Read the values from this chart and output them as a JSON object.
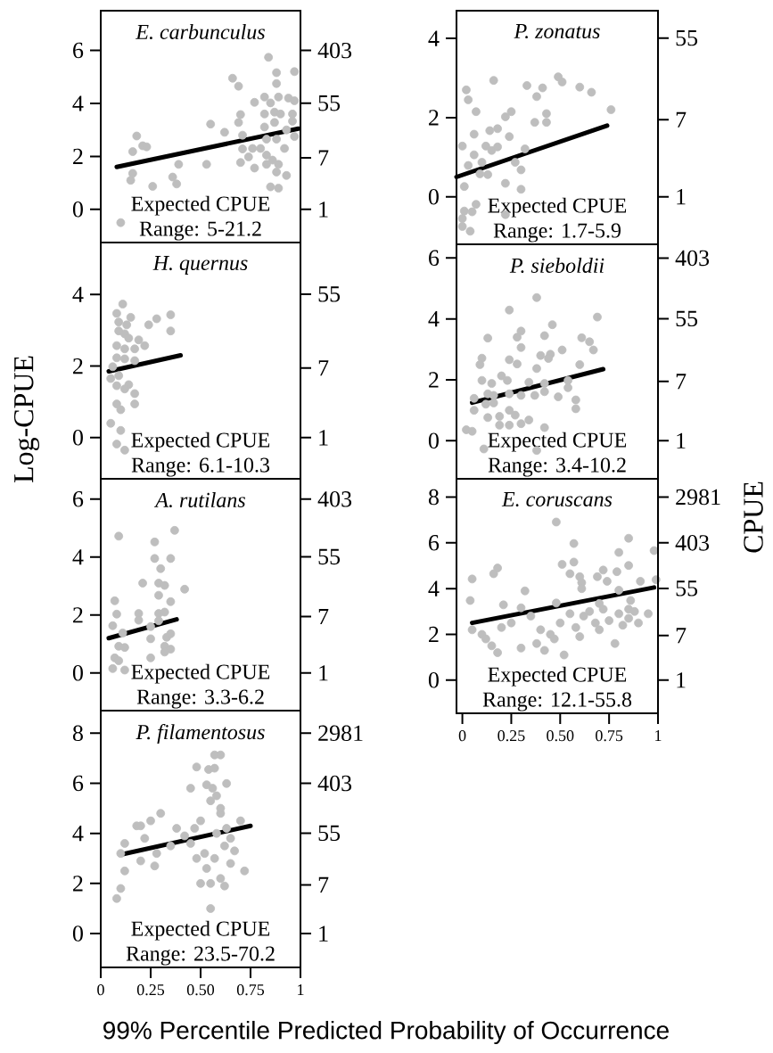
{
  "chart_data": [
    {
      "type": "scatter",
      "title": "E. carbunculus",
      "annotations": [
        "Expected CPUE",
        "Range: 5-21.2"
      ],
      "xlim": [
        0,
        1
      ],
      "ylim": [
        -1.25,
        7.5
      ],
      "yticks": [
        0,
        2,
        4,
        6
      ],
      "log": "y2",
      "y2lim": [
        0.2865,
        1808
      ],
      "y2ticks": [
        1,
        7,
        55,
        403
      ],
      "tick_labels": "y",
      "marker": "circle",
      "series": [
        {
          "color": "#bebebe",
          "x": [
            0.84,
            0.88,
            0.97,
            0.66,
            0.69,
            0.88,
            0.82,
            0.89,
            0.94,
            0.97,
            0.77,
            0.85,
            0.87,
            0.82,
            0.9,
            0.96,
            0.7,
            0.69,
            0.55,
            0.62,
            0.82,
            0.87,
            0.96,
            0.93,
            0.97,
            0.71,
            0.18,
            0.21,
            0.23,
            0.16,
            0.71,
            0.76,
            0.8,
            0.83,
            0.88,
            0.92,
            0.74,
            0.83,
            0.86,
            0.7,
            0.77,
            0.83,
            0.89,
            0.88,
            0.93,
            0.39,
            0.53,
            0.36,
            0.38,
            0.16,
            0.15,
            0.26,
            0.85,
            0.89,
            0.1
          ],
          "values": [
            5.74,
            5.16,
            5.2,
            4.95,
            4.65,
            4.75,
            4.24,
            4.24,
            4.2,
            4.1,
            4.04,
            4.02,
            3.67,
            3.6,
            3.6,
            3.6,
            3.58,
            3.28,
            3.22,
            2.91,
            3.11,
            3.28,
            3.33,
            3.0,
            2.75,
            2.8,
            2.77,
            2.4,
            2.36,
            2.18,
            2.28,
            2.3,
            2.3,
            2.65,
            2.65,
            2.3,
            1.98,
            2.05,
            1.86,
            1.77,
            1.56,
            1.7,
            1.7,
            1.41,
            1.28,
            1.7,
            1.7,
            1.22,
            0.96,
            1.36,
            1.1,
            0.87,
            0.85,
            0.8,
            -0.5
          ]
        },
        {
          "type": "line",
          "marker": "none",
          "color": "#000000",
          "x": [
            0.08,
            0.99
          ],
          "values": [
            1.6,
            3.05
          ]
        }
      ]
    },
    {
      "type": "scatter",
      "title": "H. quernus",
      "ylabel": "Log-CPUE",
      "annotations": [
        "Expected CPUE",
        "Range: 6.1-10.3"
      ],
      "xlim": [
        0,
        1
      ],
      "ylim": [
        -1.15,
        5.45
      ],
      "yticks": [
        0,
        2,
        4
      ],
      "log": "y2",
      "y2lim": [
        0.3166,
        232.8
      ],
      "y2ticks": [
        1,
        7,
        55
      ],
      "tick_labels": "y",
      "marker": "circle",
      "series": [
        {
          "color": "#bebebe",
          "x": [
            0.11,
            0.08,
            0.15,
            0.35,
            0.28,
            0.24,
            0.35,
            0.09,
            0.13,
            0.09,
            0.12,
            0.14,
            0.19,
            0.22,
            0.08,
            0.17,
            0.12,
            0.08,
            0.12,
            0.17,
            0.06,
            0.09,
            0.05,
            0.14,
            0.08,
            0.12,
            0.17,
            0.08,
            0.17,
            0.1,
            0.05,
            0.1,
            0.08,
            0.12
          ],
          "values": [
            3.73,
            3.47,
            3.36,
            3.43,
            3.32,
            3.15,
            2.98,
            3.23,
            3.15,
            2.98,
            2.9,
            2.78,
            2.73,
            2.57,
            2.57,
            2.48,
            2.48,
            2.23,
            2.2,
            2.15,
            1.98,
            1.73,
            1.65,
            1.48,
            1.45,
            1.36,
            1.23,
            0.94,
            0.94,
            0.78,
            0.4,
            0.2,
            -0.18,
            -0.35
          ]
        },
        {
          "type": "line",
          "marker": "none",
          "color": "#000000",
          "x": [
            0.04,
            0.4
          ],
          "values": [
            1.85,
            2.3
          ]
        }
      ]
    },
    {
      "type": "scatter",
      "title": "A. rutilans",
      "annotations": [
        "Expected CPUE",
        "Range: 3.3-6.2"
      ],
      "xlim": [
        0,
        1
      ],
      "ylim": [
        -1.3,
        6.7
      ],
      "yticks": [
        0,
        2,
        4,
        6
      ],
      "log": "y2",
      "y2lim": [
        0.2725,
        812.4
      ],
      "y2ticks": [
        1,
        7,
        55,
        403
      ],
      "tick_labels": "y",
      "marker": "circle",
      "series": [
        {
          "color": "#bebebe",
          "x": [
            0.09,
            0.37,
            0.27,
            0.27,
            0.35,
            0.3,
            0.21,
            0.29,
            0.32,
            0.42,
            0.07,
            0.29,
            0.35,
            0.08,
            0.19,
            0.29,
            0.32,
            0.19,
            0.06,
            0.25,
            0.29,
            0.11,
            0.25,
            0.33,
            0.35,
            0.09,
            0.12,
            0.32,
            0.35,
            0.32,
            0.07,
            0.09,
            0.25,
            0.06,
            0.12
          ],
          "values": [
            4.72,
            4.92,
            4.52,
            3.95,
            3.95,
            3.6,
            3.1,
            3.1,
            3.02,
            2.89,
            2.49,
            2.68,
            2.46,
            2.03,
            2.05,
            2.05,
            2.1,
            1.82,
            1.63,
            1.6,
            1.8,
            1.38,
            1.18,
            1.23,
            1.35,
            0.92,
            0.88,
            0.92,
            0.82,
            0.72,
            0.52,
            0.42,
            0.52,
            0.15,
            0.1
          ]
        },
        {
          "type": "line",
          "marker": "none",
          "color": "#000000",
          "x": [
            0.04,
            0.38
          ],
          "values": [
            1.2,
            1.85
          ]
        }
      ]
    },
    {
      "type": "scatter",
      "title": "P. filamentosus",
      "xlabel": "99% Percentile Predicted Probability of Occurrence",
      "annotations": [
        "Expected CPUE",
        "Range: 23.5-70.2"
      ],
      "xlim": [
        0,
        1
      ],
      "xticks": [
        0,
        0.25,
        {
          "value": 0.5,
          "label": "0.50"
        },
        0.75,
        1
      ],
      "ylim": [
        -1.35,
        8.9
      ],
      "yticks": [
        0,
        2,
        4,
        6,
        8
      ],
      "log": "y2",
      "y2lim": [
        0.2592,
        7332
      ],
      "y2ticks": [
        1,
        7,
        55,
        403,
        2981
      ],
      "marker": "circle",
      "series": [
        {
          "color": "#bebebe",
          "x": [
            0.57,
            0.6,
            0.48,
            0.54,
            0.57,
            0.53,
            0.56,
            0.63,
            0.3,
            0.25,
            0.2,
            0.18,
            0.12,
            0.1,
            0.12,
            0.1,
            0.08,
            0.22,
            0.28,
            0.27,
            0.2,
            0.38,
            0.42,
            0.45,
            0.47,
            0.5,
            0.52,
            0.5,
            0.53,
            0.55,
            0.55,
            0.57,
            0.58,
            0.6,
            0.6,
            0.62,
            0.63,
            0.65,
            0.67,
            0.7,
            0.72,
            0.58,
            0.55,
            0.45,
            0.65,
            0.48,
            0.35,
            0.6,
            0.62
          ],
          "values": [
            7.13,
            7.13,
            6.65,
            6.55,
            6.6,
            5.94,
            5.8,
            5.99,
            4.8,
            4.5,
            4.3,
            4.3,
            3.6,
            3.2,
            2.5,
            1.8,
            1.4,
            3.8,
            3.2,
            2.7,
            2.9,
            4.2,
            3.9,
            3.6,
            4.2,
            4.5,
            3.2,
            2.0,
            2.6,
            1.0,
            2.0,
            3.0,
            4.0,
            4.8,
            5.0,
            3.5,
            4.2,
            3.8,
            3.3,
            4.5,
            2.5,
            5.5,
            5.3,
            5.8,
            2.8,
            3.0,
            3.5,
            2.2,
            1.9
          ]
        },
        {
          "type": "line",
          "marker": "none",
          "color": "#000000",
          "x": [
            0.1,
            0.75
          ],
          "values": [
            3.15,
            4.3
          ]
        }
      ]
    },
    {
      "type": "scatter",
      "title": "P. zonatus",
      "annotations": [
        "Expected CPUE",
        "Range: 1.7-5.9"
      ],
      "xlim": [
        -0.03,
        1
      ],
      "ylim": [
        -1.2,
        4.7
      ],
      "yticks": [
        0,
        2,
        4
      ],
      "log": "y2",
      "y2lim": [
        0.3012,
        109.9
      ],
      "y2ticks": [
        1,
        7,
        55
      ],
      "tick_labels": "y",
      "marker": "circle",
      "series": [
        {
          "color": "#bebebe",
          "x": [
            0.16,
            0.49,
            0.51,
            0.33,
            0.41,
            0.6,
            0.66,
            0.02,
            0.03,
            0.38,
            0.07,
            0.25,
            0.22,
            0.43,
            0.43,
            0.37,
            0.76,
            0.14,
            0.18,
            0.06,
            0.24,
            0,
            0.12,
            0.15,
            0.18,
            0.32,
            0.06,
            0.1,
            0.03,
            0.27,
            0.3,
            0.13,
            0.09,
            0.01,
            0.22,
            0.3,
            0.07,
            0.05,
            0.01,
            0,
            0.04,
            0.22,
            0
          ],
          "values": [
            2.94,
            3.03,
            2.9,
            2.81,
            2.75,
            2.77,
            2.64,
            2.7,
            2.45,
            2.53,
            2.15,
            2.15,
            2.02,
            2.1,
            1.88,
            1.88,
            2.2,
            1.67,
            1.72,
            1.58,
            1.52,
            1.28,
            1.28,
            1.17,
            1.26,
            1.21,
            1.06,
            0.87,
            0.79,
            0.87,
            0.68,
            0.56,
            0.58,
            0.26,
            0.34,
            0.19,
            -0.19,
            -0.38,
            -0.36,
            -0.75,
            -0.87,
            -0.45,
            -0.55
          ]
        },
        {
          "type": "line",
          "marker": "none",
          "color": "#000000",
          "x": [
            -0.03,
            0.74
          ],
          "values": [
            0.5,
            1.8
          ]
        }
      ]
    },
    {
      "type": "scatter",
      "title": "P. sieboldii",
      "annotations": [
        "Expected CPUE",
        "Range: 3.4-10.2"
      ],
      "xlim": [
        -0.03,
        1
      ],
      "ylim": [
        -1.25,
        6.45
      ],
      "yticks": [
        0,
        2,
        4,
        6
      ],
      "log": "y2",
      "y2lim": [
        0.2865,
        632.7
      ],
      "y2ticks": [
        1,
        7,
        55,
        403
      ],
      "tick_labels": "y",
      "marker": "circle",
      "series": [
        {
          "color": "#bebebe",
          "x": [
            0.38,
            0.24,
            0.69,
            0.46,
            0.3,
            0.28,
            0.42,
            0.13,
            0.61,
            0.65,
            0.67,
            0.3,
            0.51,
            0.45,
            0.4,
            0.44,
            0.1,
            0.24,
            0.28,
            0.09,
            0.6,
            0.38,
            0.2,
            0.1,
            0.15,
            0.23,
            0.34,
            0.42,
            0.54,
            0.54,
            0.37,
            0.42,
            0.49,
            0.06,
            0.13,
            0.16,
            0.24,
            0.3,
            0.58,
            0.12,
            0.16,
            0.06,
            0.24,
            0.58,
            0.13,
            0.19,
            0.27,
            0.3,
            0.34,
            0.19,
            0.24,
            0.02,
            0.05,
            0.42,
            0.11,
            0.38
          ],
          "values": [
            4.7,
            4.29,
            4.06,
            3.81,
            3.6,
            3.4,
            3.45,
            3.37,
            3.38,
            3.25,
            2.98,
            3.06,
            2.98,
            2.84,
            2.8,
            2.7,
            2.71,
            2.66,
            2.52,
            2.5,
            2.5,
            2.37,
            2.13,
            1.98,
            1.88,
            1.98,
            1.92,
            1.88,
            1.98,
            1.74,
            1.49,
            1.61,
            1.44,
            1.39,
            1.54,
            1.49,
            1.54,
            1.49,
            1.34,
            1.2,
            1.24,
            1.0,
            1.0,
            1.05,
            0.76,
            0.8,
            0.84,
            0.56,
            0.68,
            0.51,
            0.51,
            0.36,
            0.31,
            0.43,
            -0.27,
            -0.32
          ]
        },
        {
          "type": "line",
          "marker": "none",
          "color": "#000000",
          "x": [
            0.05,
            0.72
          ],
          "values": [
            1.25,
            2.35
          ]
        }
      ]
    },
    {
      "type": "scatter",
      "title": "E. coruscans",
      "y2label": "CPUE",
      "annotations": [
        "Expected CPUE",
        "Range: 12.1-55.8"
      ],
      "xlim": [
        -0.03,
        1
      ],
      "xticks": [
        0,
        0.25,
        {
          "value": 0.5,
          "label": "0.50"
        },
        0.75,
        1
      ],
      "ylim": [
        -1.45,
        8.8
      ],
      "yticks": [
        0,
        2,
        4,
        6,
        8
      ],
      "log": "y2",
      "y2lim": [
        0.2346,
        6634
      ],
      "y2ticks": [
        1,
        7,
        55,
        403,
        2981
      ],
      "marker": "circle",
      "series": [
        {
          "color": "#bebebe",
          "x": [
            0.48,
            0.85,
            0.57,
            0.98,
            0.8,
            0.51,
            0.57,
            0.85,
            0.18,
            0.16,
            0.05,
            0.55,
            0.6,
            0.72,
            0.79,
            0.69,
            0.61,
            0.74,
            0.91,
            0.99,
            0.32,
            0.8,
            0.61,
            0.04,
            0.21,
            0.48,
            0.3,
            0.7,
            0.86,
            0.85,
            0.05,
            0.1,
            0.12,
            0.15,
            0.18,
            0.2,
            0.25,
            0.3,
            0.35,
            0.38,
            0.4,
            0.42,
            0.45,
            0.47,
            0.5,
            0.52,
            0.55,
            0.58,
            0.6,
            0.62,
            0.65,
            0.68,
            0.7,
            0.72,
            0.75,
            0.78,
            0.8,
            0.82,
            0.85,
            0.88,
            0.9,
            0.95
          ],
          "values": [
            6.91,
            6.2,
            5.97,
            5.66,
            5.58,
            5.06,
            5.16,
            5.01,
            4.9,
            4.65,
            4.42,
            4.65,
            4.52,
            4.81,
            4.74,
            4.52,
            4.26,
            4.32,
            4.32,
            4.39,
            3.9,
            3.93,
            4.0,
            3.48,
            3.29,
            3.37,
            3.16,
            3.35,
            3.48,
            3.1,
            2.2,
            2.0,
            1.8,
            1.5,
            1.2,
            2.3,
            2.5,
            1.4,
            2.8,
            1.6,
            2.2,
            1.3,
            2.0,
            1.8,
            2.5,
            1.1,
            2.9,
            2.3,
            1.9,
            2.8,
            3.0,
            2.5,
            2.2,
            3.1,
            2.6,
            1.6,
            2.9,
            2.4,
            2.7,
            3.0,
            2.5,
            2.9
          ]
        },
        {
          "type": "line",
          "marker": "none",
          "color": "#000000",
          "x": [
            0.05,
            0.98
          ],
          "values": [
            2.5,
            4.05
          ]
        }
      ]
    }
  ]
}
